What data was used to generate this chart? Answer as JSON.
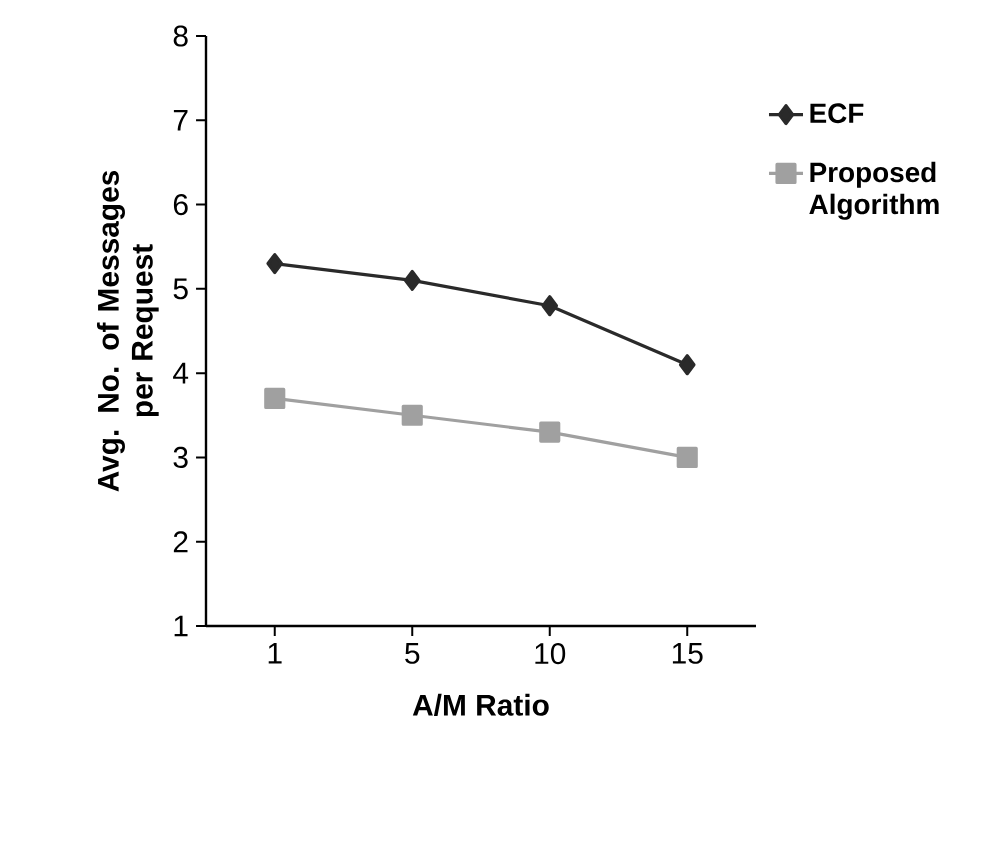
{
  "chart_data": {
    "type": "line",
    "xlabel": "A/M Ratio",
    "ylabel": "Avg. No. of Messages per Request",
    "categories": [
      "1",
      "5",
      "10",
      "15"
    ],
    "series": [
      {
        "name": "ECF",
        "color": "#2a2a2a",
        "marker": "diamond",
        "values": [
          5.3,
          5.1,
          4.8,
          4.1
        ]
      },
      {
        "name": "Proposed Algorithm",
        "color": "#a0a0a0",
        "marker": "square",
        "values": [
          3.7,
          3.5,
          3.3,
          3.0
        ]
      }
    ],
    "ylim": [
      1,
      8
    ],
    "yticks": [
      1,
      2,
      3,
      4,
      5,
      6,
      7,
      8
    ],
    "legend": "right",
    "grid": false
  }
}
